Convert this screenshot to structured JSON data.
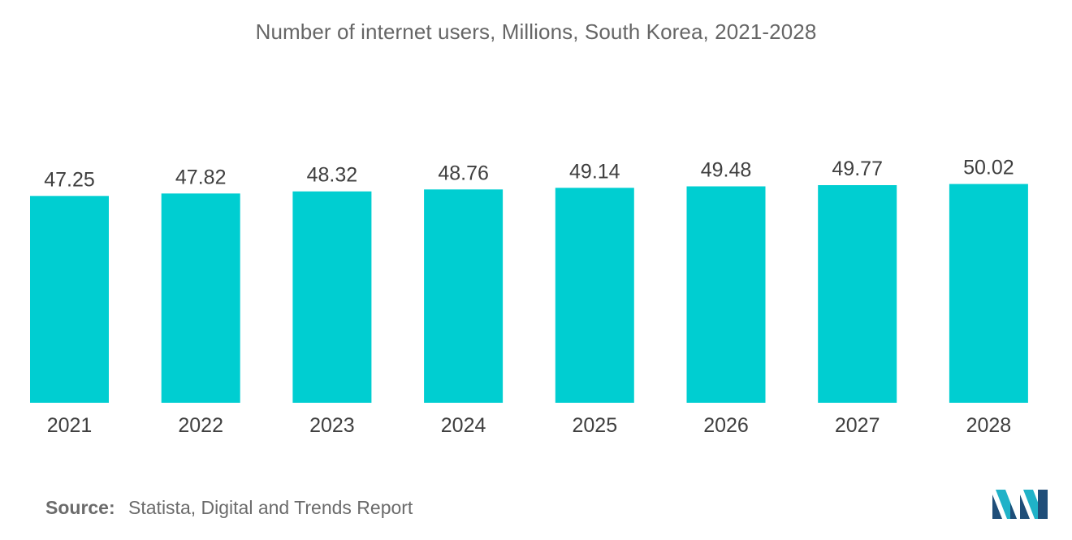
{
  "chart_data": {
    "type": "bar",
    "title": "Number of internet users, Millions, South Korea, 2021-2028",
    "categories": [
      "2021",
      "2022",
      "2023",
      "2024",
      "2025",
      "2026",
      "2027",
      "2028"
    ],
    "values": [
      47.25,
      47.82,
      48.32,
      48.76,
      49.14,
      49.48,
      49.77,
      50.02
    ],
    "value_labels": [
      "47.25",
      "47.82",
      "48.32",
      "48.76",
      "49.14",
      "49.48",
      "49.77",
      "50.02"
    ],
    "xlabel": "",
    "ylabel": "",
    "grid": false,
    "legend": "none",
    "bar_color": "#00ced1"
  },
  "source": {
    "label": "Source:",
    "text": "Statista, Digital and Trends Report"
  },
  "logo": {
    "icon": "mordor-intelligence-logo-icon",
    "colors": [
      "#1f4e79",
      "#20b2c8"
    ]
  }
}
